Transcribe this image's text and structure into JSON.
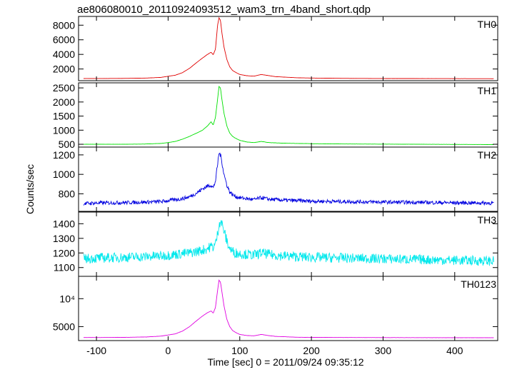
{
  "title": "ae806080010_20110924093512_wam3_trn_4band_short.qdp",
  "chart_data": {
    "type": "line",
    "xlabel": "Time [sec] 0 = 2011/09/24 09:35:12",
    "ylabel": "Counts/sec",
    "xlim": [
      -125,
      460
    ],
    "x_ticks": [
      -100,
      0,
      100,
      200,
      300,
      400
    ],
    "grid": false,
    "panels": [
      {
        "name": "TH0",
        "color": "#e00000",
        "ylim": [
          400,
          9200
        ],
        "y_ticks": [
          2000,
          4000,
          6000,
          8000
        ],
        "series": {
          "x": [
            -118,
            -100,
            -60,
            -30,
            -10,
            0,
            10,
            20,
            30,
            40,
            48,
            55,
            60,
            63,
            66,
            69,
            71,
            73,
            75,
            78,
            82,
            86,
            90,
            95,
            100,
            110,
            120,
            130,
            140,
            150,
            160,
            180,
            200,
            250,
            300,
            350,
            400,
            455
          ],
          "y": [
            700,
            700,
            720,
            760,
            850,
            1000,
            1150,
            1500,
            2100,
            2900,
            3500,
            4000,
            4300,
            3950,
            4700,
            8000,
            9000,
            8700,
            7000,
            5000,
            3300,
            2300,
            1800,
            1500,
            1250,
            1080,
            1020,
            1250,
            1100,
            950,
            900,
            800,
            760,
            720,
            700,
            690,
            680,
            670
          ]
        }
      },
      {
        "name": "TH1",
        "color": "#00e000",
        "ylim": [
          400,
          2680
        ],
        "y_ticks": [
          500,
          1000,
          1500,
          2000,
          2500
        ],
        "series": {
          "x": [
            -118,
            -100,
            -60,
            -30,
            -10,
            0,
            10,
            20,
            30,
            40,
            48,
            55,
            60,
            63,
            66,
            69,
            71,
            73,
            75,
            78,
            82,
            86,
            90,
            95,
            100,
            110,
            120,
            130,
            140,
            160,
            200,
            250,
            300,
            350,
            400,
            455
          ],
          "y": [
            500,
            500,
            500,
            510,
            530,
            560,
            600,
            680,
            780,
            900,
            1000,
            1150,
            1300,
            1180,
            1450,
            2100,
            2550,
            2500,
            2100,
            1600,
            1150,
            900,
            780,
            700,
            640,
            580,
            560,
            600,
            560,
            540,
            520,
            510,
            505,
            500,
            495,
            490
          ]
        }
      },
      {
        "name": "TH2",
        "color": "#0000e0",
        "ylim": [
          620,
          1280
        ],
        "y_ticks": [
          800,
          1000,
          1200
        ],
        "series": {
          "x": [
            -118,
            -100,
            -60,
            -30,
            -10,
            0,
            10,
            20,
            30,
            40,
            48,
            55,
            60,
            63,
            66,
            69,
            71,
            73,
            75,
            78,
            82,
            86,
            90,
            95,
            100,
            110,
            120,
            130,
            140,
            160,
            200,
            250,
            300,
            350,
            400,
            455
          ],
          "y": [
            700,
            705,
            710,
            715,
            720,
            730,
            740,
            750,
            770,
            810,
            850,
            880,
            890,
            860,
            930,
            1100,
            1220,
            1200,
            1130,
            1000,
            890,
            820,
            790,
            770,
            760,
            750,
            740,
            760,
            745,
            735,
            725,
            720,
            715,
            712,
            708,
            705
          ]
        }
      },
      {
        "name": "TH3",
        "color": "#00e8ec",
        "ylim": [
          1040,
          1480
        ],
        "y_ticks": [
          1100,
          1200,
          1300,
          1400
        ],
        "series": {
          "x": [
            -118,
            -100,
            -60,
            -30,
            -10,
            0,
            10,
            20,
            30,
            40,
            48,
            55,
            60,
            63,
            66,
            69,
            71,
            73,
            75,
            78,
            82,
            86,
            90,
            95,
            100,
            110,
            120,
            130,
            140,
            160,
            200,
            250,
            300,
            350,
            400,
            455
          ],
          "y": [
            1160,
            1165,
            1170,
            1175,
            1180,
            1185,
            1190,
            1195,
            1200,
            1210,
            1220,
            1230,
            1245,
            1240,
            1260,
            1330,
            1400,
            1420,
            1400,
            1350,
            1280,
            1230,
            1210,
            1200,
            1195,
            1190,
            1185,
            1200,
            1190,
            1180,
            1170,
            1165,
            1160,
            1155,
            1150,
            1145
          ]
        }
      },
      {
        "name": "TH0123",
        "color": "#e000e0",
        "ylim": [
          2500,
          14000
        ],
        "y_ticks": [
          5000,
          10000
        ],
        "y_tick_labels": [
          "5000",
          "10⁴"
        ],
        "series": {
          "x": [
            -118,
            -100,
            -60,
            -30,
            -10,
            0,
            10,
            20,
            30,
            40,
            48,
            55,
            60,
            63,
            66,
            69,
            71,
            73,
            75,
            78,
            82,
            86,
            90,
            95,
            100,
            110,
            120,
            130,
            140,
            150,
            160,
            180,
            200,
            250,
            300,
            350,
            400,
            455
          ],
          "y": [
            3050,
            3050,
            3080,
            3150,
            3300,
            3500,
            3700,
            4200,
            5000,
            6100,
            6900,
            7500,
            7800,
            7400,
            8400,
            11500,
            13300,
            13000,
            11300,
            8700,
            6300,
            5000,
            4300,
            3900,
            3600,
            3400,
            3350,
            3600,
            3400,
            3250,
            3200,
            3100,
            3080,
            3050,
            3040,
            3030,
            3020,
            3010
          ]
        }
      }
    ]
  }
}
